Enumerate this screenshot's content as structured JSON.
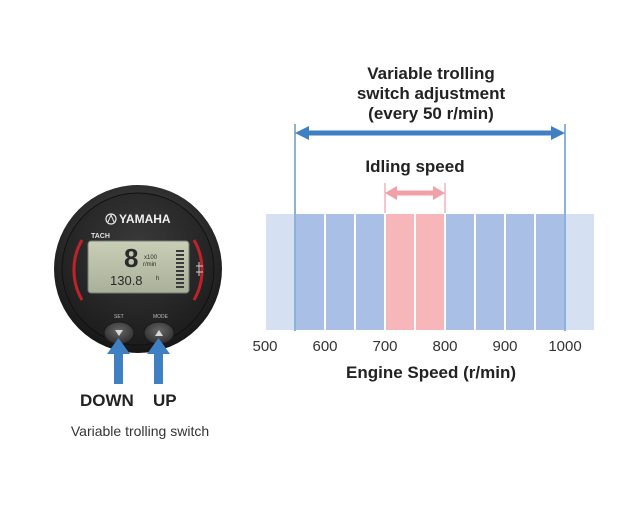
{
  "gauge": {
    "brand": "YAMAHA",
    "tach_label": "TACH",
    "lcd_digit": "8",
    "lcd_unit_top": "x100",
    "lcd_unit_bottom": "r/min",
    "lcd_hours": "130.8",
    "lcd_hours_unit": "h",
    "button_left_label": "SET",
    "button_right_label": "MODE"
  },
  "controls": {
    "down_label": "DOWN",
    "up_label": "UP",
    "caption": "Variable trolling switch"
  },
  "adjustment": {
    "line1": "Variable trolling",
    "line2": "switch adjustment",
    "line3": "(every 50 r/min)",
    "from": 550,
    "to": 1000
  },
  "idling": {
    "label": "Idling speed",
    "from": 700,
    "to": 800
  },
  "scale": {
    "xlabel": "Engine Speed (r/min)",
    "ticks": [
      "500",
      "600",
      "700",
      "800",
      "900",
      "1000"
    ],
    "tick_values": [
      500,
      600,
      700,
      800,
      900,
      1000
    ],
    "bands": [
      {
        "from": 500,
        "to": 550,
        "kind": "outside"
      },
      {
        "from": 550,
        "to": 600,
        "kind": "adjustable"
      },
      {
        "from": 600,
        "to": 650,
        "kind": "adjustable"
      },
      {
        "from": 650,
        "to": 700,
        "kind": "adjustable"
      },
      {
        "from": 700,
        "to": 750,
        "kind": "idling"
      },
      {
        "from": 750,
        "to": 800,
        "kind": "idling"
      },
      {
        "from": 800,
        "to": 850,
        "kind": "adjustable"
      },
      {
        "from": 850,
        "to": 900,
        "kind": "adjustable"
      },
      {
        "from": 900,
        "to": 950,
        "kind": "adjustable"
      },
      {
        "from": 950,
        "to": 1000,
        "kind": "adjustable"
      },
      {
        "from": 1000,
        "to": 1050,
        "kind": "outside"
      }
    ]
  },
  "colors": {
    "adjust_arrow": "#3f7fc4",
    "idle_arrow": "#f0a0a6",
    "band_adjustable": "#a9bfe6",
    "band_outside": "#d5e0f2",
    "band_idling": "#f6b6ba",
    "band_divider": "#ffffff",
    "guide_line": "#3f7fc4",
    "button_arrow": "#3f7fc4"
  }
}
